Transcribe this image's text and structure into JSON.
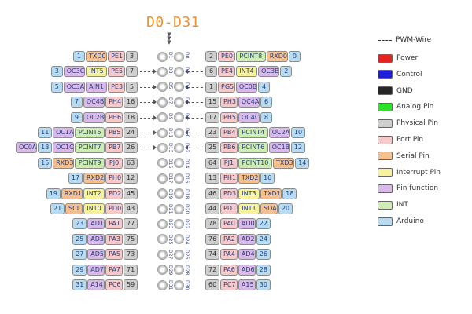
{
  "title": "D0-D31",
  "legend": {
    "pwm_label": "PWM-Wire",
    "items": [
      {
        "label": "Power",
        "color": "#e8231f"
      },
      {
        "label": "Control",
        "color": "#1e1ed8"
      },
      {
        "label": "GND",
        "color": "#262626"
      },
      {
        "label": "Analog Pin",
        "color": "#2ee02a"
      },
      {
        "label": "Physical Pin",
        "color": "#cfcfcf"
      },
      {
        "label": "Port Pin",
        "color": "#f7c9c9"
      },
      {
        "label": "Serial Pin",
        "color": "#f5c08d"
      },
      {
        "label": "Interrupt Pin",
        "color": "#f7f39a"
      },
      {
        "label": "Pin function",
        "color": "#d9b9ea"
      },
      {
        "label": "INT",
        "color": "#cdeeb0"
      },
      {
        "label": "Arduino",
        "color": "#b7dcf2"
      }
    ]
  },
  "header_pins": [
    {
      "left": {
        "labels": [
          [
            "1",
            "arduino"
          ],
          [
            "TXD0",
            "serial"
          ],
          [
            "PE1",
            "port"
          ],
          [
            "3",
            "phys"
          ]
        ],
        "pwm": false
      },
      "right": {
        "labels": [
          [
            "2",
            "phys"
          ],
          [
            "PE0",
            "port"
          ],
          [
            "PCINT8",
            "intx"
          ],
          [
            "RXD0",
            "serial"
          ],
          [
            "0",
            "arduino"
          ]
        ],
        "pwm": false
      },
      "pin_left": "D1",
      "pin_right": "D0"
    },
    {
      "left": {
        "labels": [
          [
            "3",
            "arduino"
          ],
          [
            "OC3C",
            "func"
          ],
          [
            "INT5",
            "int"
          ],
          [
            "PE5",
            "port"
          ],
          [
            "7",
            "phys"
          ]
        ],
        "pwm": true
      },
      "right": {
        "labels": [
          [
            "6",
            "phys"
          ],
          [
            "PE4",
            "port"
          ],
          [
            "INT4",
            "int"
          ],
          [
            "OC3B",
            "func"
          ],
          [
            "2",
            "arduino"
          ]
        ],
        "pwm": true
      },
      "pin_left": "D3",
      "pin_right": "D2"
    },
    {
      "left": {
        "labels": [
          [
            "5",
            "arduino"
          ],
          [
            "OC3A",
            "func"
          ],
          [
            "AIN1",
            "func"
          ],
          [
            "PE3",
            "port"
          ],
          [
            "5",
            "phys"
          ]
        ],
        "pwm": true
      },
      "right": {
        "labels": [
          [
            "1",
            "phys"
          ],
          [
            "PG5",
            "port"
          ],
          [
            "OC0B",
            "func"
          ],
          [
            "4",
            "arduino"
          ]
        ],
        "pwm": true
      },
      "pin_left": "D5",
      "pin_right": "D4"
    },
    {
      "left": {
        "labels": [
          [
            "7",
            "arduino"
          ],
          [
            "OC4B",
            "func"
          ],
          [
            "PH4",
            "port"
          ],
          [
            "16",
            "phys"
          ]
        ],
        "pwm": true
      },
      "right": {
        "labels": [
          [
            "15",
            "phys"
          ],
          [
            "PH3",
            "port"
          ],
          [
            "OC4A",
            "func"
          ],
          [
            "6",
            "arduino"
          ]
        ],
        "pwm": true
      },
      "pin_left": "D7",
      "pin_right": "D6"
    },
    {
      "left": {
        "labels": [
          [
            "9",
            "arduino"
          ],
          [
            "OC2B",
            "func"
          ],
          [
            "PH6",
            "port"
          ],
          [
            "18",
            "phys"
          ]
        ],
        "pwm": true
      },
      "right": {
        "labels": [
          [
            "17",
            "phys"
          ],
          [
            "PH5",
            "port"
          ],
          [
            "OC4C",
            "func"
          ],
          [
            "8",
            "arduino"
          ]
        ],
        "pwm": true
      },
      "pin_left": "D9",
      "pin_right": "D8"
    },
    {
      "left": {
        "labels": [
          [
            "11",
            "arduino"
          ],
          [
            "OC1A",
            "func"
          ],
          [
            "PCINT5",
            "intx"
          ],
          [
            "PB5",
            "port"
          ],
          [
            "24",
            "phys"
          ]
        ],
        "pwm": true
      },
      "right": {
        "labels": [
          [
            "23",
            "phys"
          ],
          [
            "PB4",
            "port"
          ],
          [
            "PCINT4",
            "intx"
          ],
          [
            "OC2A",
            "func"
          ],
          [
            "10",
            "arduino"
          ]
        ],
        "pwm": true
      },
      "pin_left": "D11",
      "pin_right": "D10"
    },
    {
      "left": {
        "labels": [
          [
            "OC0A",
            "func"
          ],
          [
            "13",
            "arduino"
          ],
          [
            "OC1C",
            "func"
          ],
          [
            "PCINT7",
            "intx"
          ],
          [
            "PB7",
            "port"
          ],
          [
            "26",
            "phys"
          ]
        ],
        "pwm": true
      },
      "right": {
        "labels": [
          [
            "25",
            "phys"
          ],
          [
            "PB6",
            "port"
          ],
          [
            "PCINT6",
            "intx"
          ],
          [
            "OC1B",
            "func"
          ],
          [
            "12",
            "arduino"
          ]
        ],
        "pwm": true
      },
      "pin_left": "D13",
      "pin_right": "D12"
    },
    {
      "left": {
        "labels": [
          [
            "15",
            "arduino"
          ],
          [
            "RXD3",
            "serial"
          ],
          [
            "PCINT9",
            "intx"
          ],
          [
            "PJ0",
            "port"
          ],
          [
            "63",
            "phys"
          ]
        ],
        "pwm": false
      },
      "right": {
        "labels": [
          [
            "64",
            "phys"
          ],
          [
            "PJ1",
            "port"
          ],
          [
            "PCINT10",
            "intx"
          ],
          [
            "TXD3",
            "serial"
          ],
          [
            "14",
            "arduino"
          ]
        ],
        "pwm": false
      },
      "pin_left": "D15",
      "pin_right": "D14"
    },
    {
      "left": {
        "labels": [
          [
            "17",
            "arduino"
          ],
          [
            "RXD2",
            "serial"
          ],
          [
            "PH0",
            "port"
          ],
          [
            "12",
            "phys"
          ]
        ],
        "pwm": false
      },
      "right": {
        "labels": [
          [
            "13",
            "phys"
          ],
          [
            "PH1",
            "port"
          ],
          [
            "TXD2",
            "serial"
          ],
          [
            "16",
            "arduino"
          ]
        ],
        "pwm": false
      },
      "pin_left": "D17",
      "pin_right": "D16"
    },
    {
      "left": {
        "labels": [
          [
            "19",
            "arduino"
          ],
          [
            "RXD1",
            "serial"
          ],
          [
            "INT2",
            "int"
          ],
          [
            "PD2",
            "port"
          ],
          [
            "45",
            "phys"
          ]
        ],
        "pwm": false
      },
      "right": {
        "labels": [
          [
            "46",
            "phys"
          ],
          [
            "PD3",
            "port"
          ],
          [
            "INT3",
            "int"
          ],
          [
            "TXD1",
            "serial"
          ],
          [
            "18",
            "arduino"
          ]
        ],
        "pwm": false
      },
      "pin_left": "D19",
      "pin_right": "D18"
    },
    {
      "left": {
        "labels": [
          [
            "21",
            "arduino"
          ],
          [
            "SCL",
            "serial"
          ],
          [
            "INT0",
            "int"
          ],
          [
            "PD0",
            "port"
          ],
          [
            "43",
            "phys"
          ]
        ],
        "pwm": false
      },
      "right": {
        "labels": [
          [
            "44",
            "phys"
          ],
          [
            "PD1",
            "port"
          ],
          [
            "INT1",
            "int"
          ],
          [
            "SDA",
            "serial"
          ],
          [
            "20",
            "arduino"
          ]
        ],
        "pwm": false
      },
      "pin_left": "D21",
      "pin_right": "D20"
    },
    {
      "left": {
        "labels": [
          [
            "23",
            "arduino"
          ],
          [
            "AD1",
            "func"
          ],
          [
            "PA1",
            "port"
          ],
          [
            "77",
            "phys"
          ]
        ],
        "pwm": false
      },
      "right": {
        "labels": [
          [
            "78",
            "phys"
          ],
          [
            "PA0",
            "port"
          ],
          [
            "AD0",
            "func"
          ],
          [
            "22",
            "arduino"
          ]
        ],
        "pwm": false
      },
      "pin_left": "D23",
      "pin_right": "D22"
    },
    {
      "left": {
        "labels": [
          [
            "25",
            "arduino"
          ],
          [
            "AD3",
            "func"
          ],
          [
            "PA3",
            "port"
          ],
          [
            "75",
            "phys"
          ]
        ],
        "pwm": false
      },
      "right": {
        "labels": [
          [
            "76",
            "phys"
          ],
          [
            "PA2",
            "port"
          ],
          [
            "AD2",
            "func"
          ],
          [
            "24",
            "arduino"
          ]
        ],
        "pwm": false
      },
      "pin_left": "D25",
      "pin_right": "D24"
    },
    {
      "left": {
        "labels": [
          [
            "27",
            "arduino"
          ],
          [
            "AD5",
            "func"
          ],
          [
            "PA5",
            "port"
          ],
          [
            "73",
            "phys"
          ]
        ],
        "pwm": false
      },
      "right": {
        "labels": [
          [
            "74",
            "phys"
          ],
          [
            "PA4",
            "port"
          ],
          [
            "AD4",
            "func"
          ],
          [
            "26",
            "arduino"
          ]
        ],
        "pwm": false
      },
      "pin_left": "D27",
      "pin_right": "D26"
    },
    {
      "left": {
        "labels": [
          [
            "29",
            "arduino"
          ],
          [
            "AD7",
            "func"
          ],
          [
            "PA7",
            "port"
          ],
          [
            "71",
            "phys"
          ]
        ],
        "pwm": false
      },
      "right": {
        "labels": [
          [
            "72",
            "phys"
          ],
          [
            "PA6",
            "port"
          ],
          [
            "AD6",
            "func"
          ],
          [
            "28",
            "arduino"
          ]
        ],
        "pwm": false
      },
      "pin_left": "D29",
      "pin_right": "D28"
    },
    {
      "left": {
        "labels": [
          [
            "31",
            "arduino"
          ],
          [
            "A14",
            "func"
          ],
          [
            "PC6",
            "port"
          ],
          [
            "59",
            "phys"
          ]
        ],
        "pwm": false
      },
      "right": {
        "labels": [
          [
            "60",
            "phys"
          ],
          [
            "PC7",
            "port"
          ],
          [
            "A15",
            "func"
          ],
          [
            "30",
            "arduino"
          ]
        ],
        "pwm": false
      },
      "pin_left": "D31",
      "pin_right": "D30"
    }
  ]
}
